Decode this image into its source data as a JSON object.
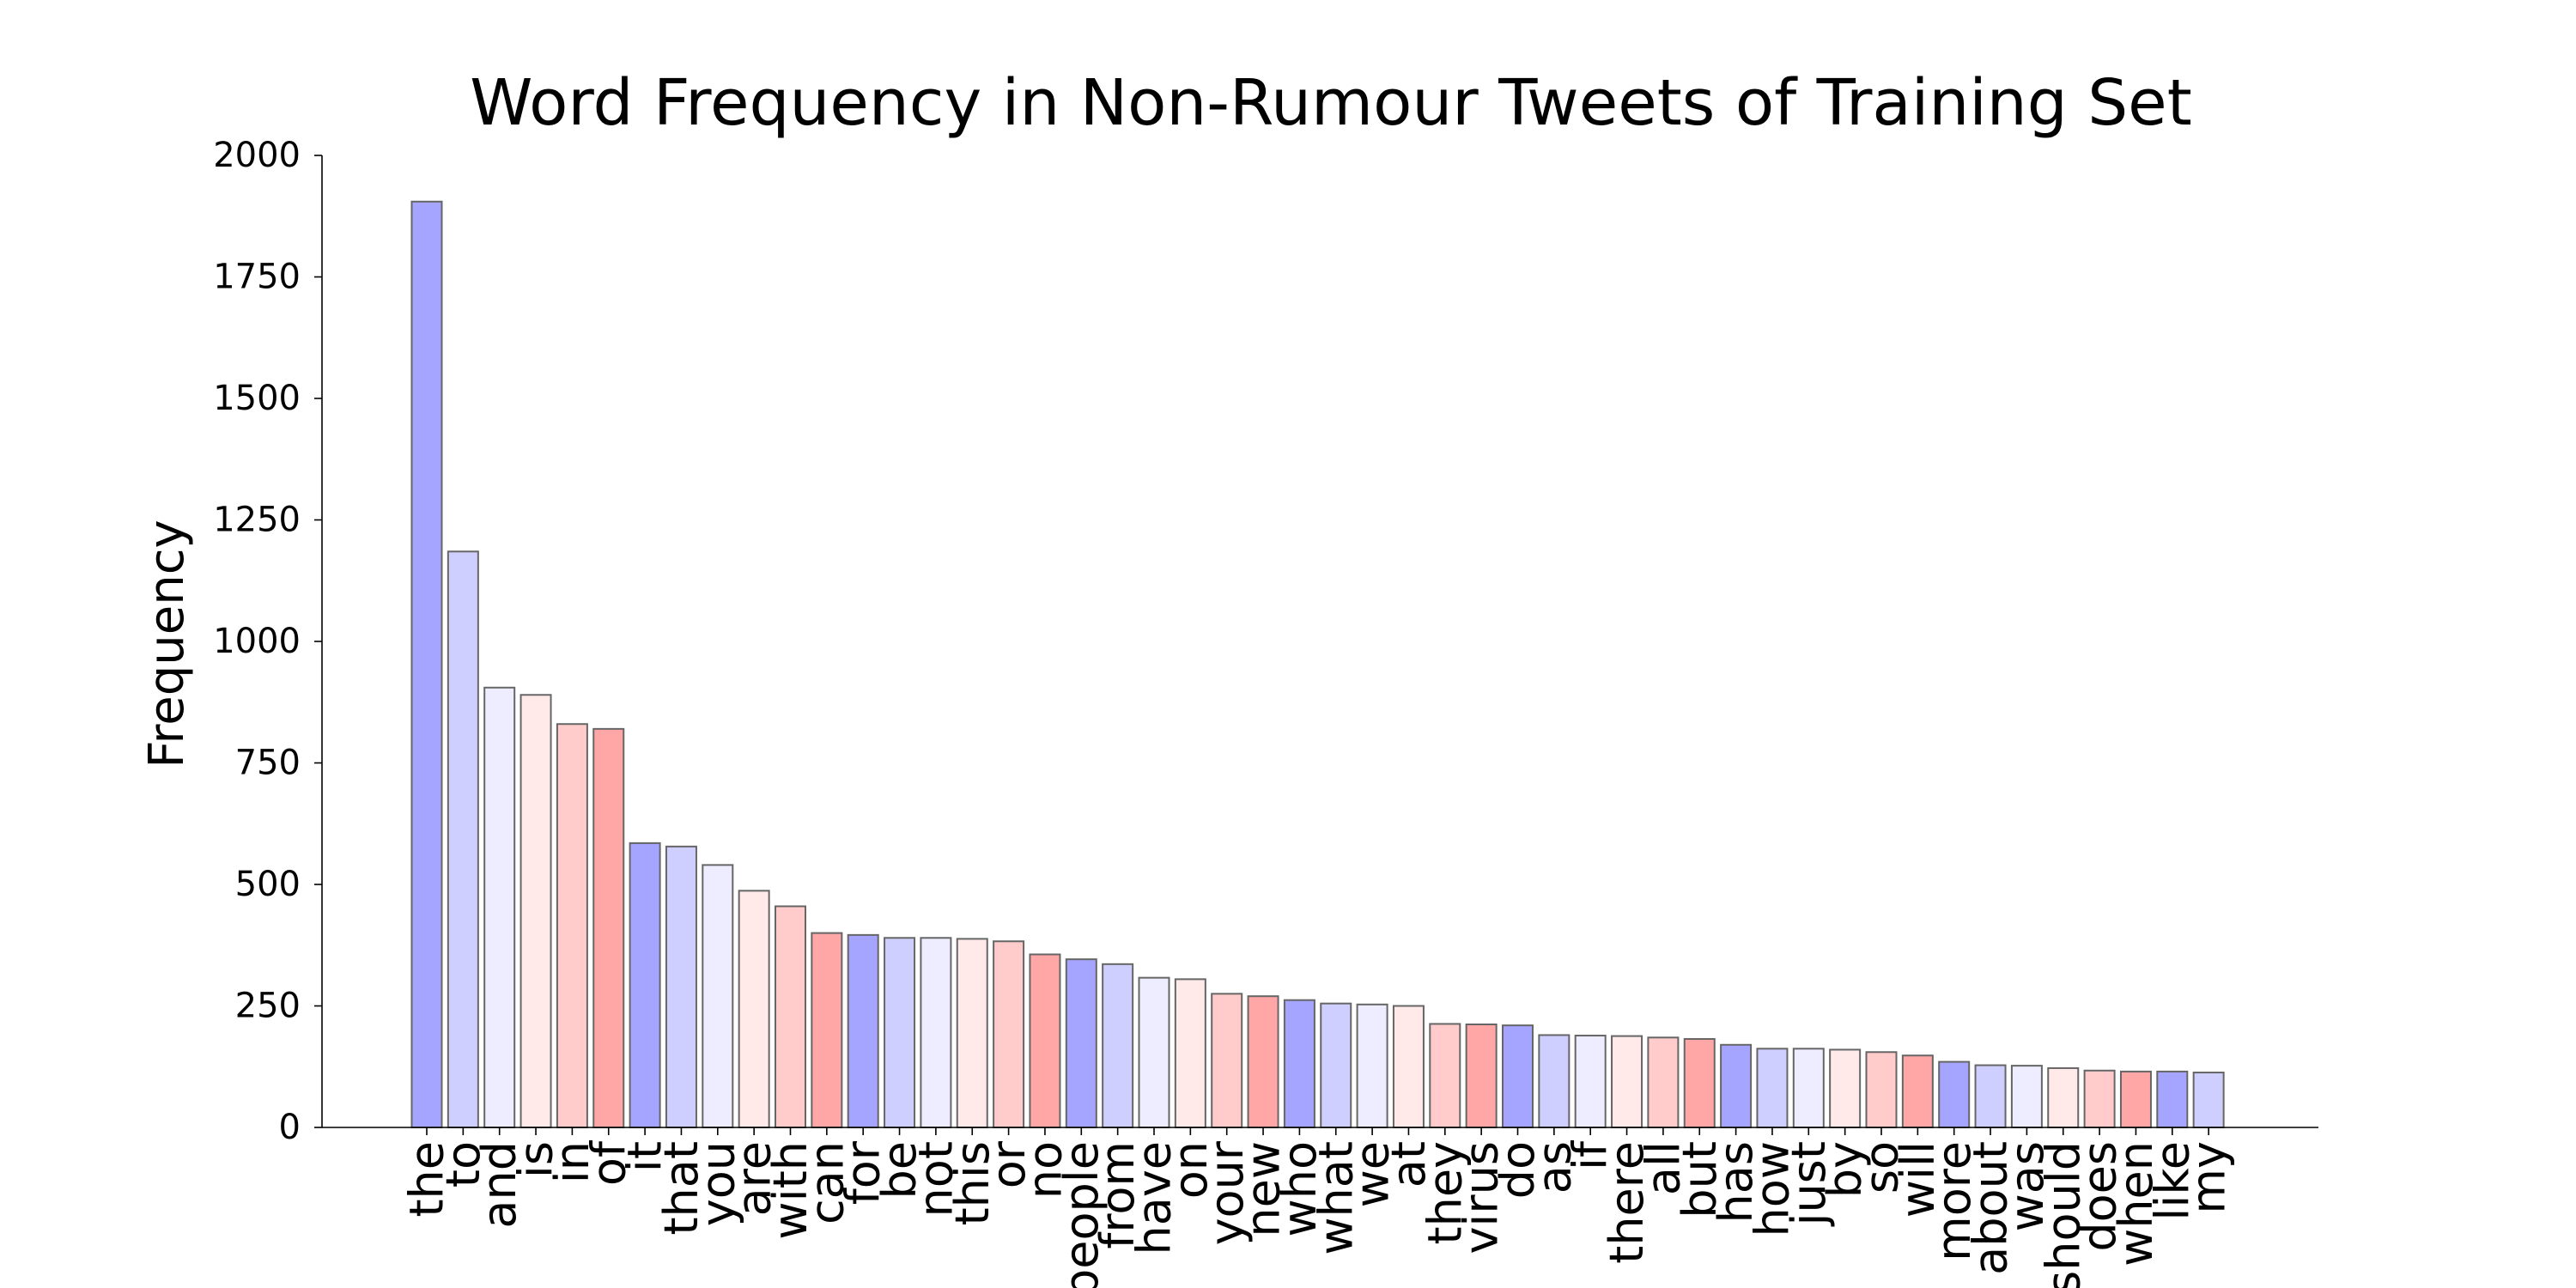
{
  "chart_data": {
    "type": "bar",
    "title": "Word Frequency in Non-Rumour Tweets of Training Set",
    "ylabel": "Frequency",
    "xlabel": "",
    "ylim": [
      0,
      2000
    ],
    "yticks": [
      0,
      250,
      500,
      750,
      1000,
      1250,
      1500,
      1750,
      2000
    ],
    "grid": false,
    "categories": [
      "the",
      "to",
      "and",
      "is",
      "in",
      "of",
      "it",
      "that",
      "you",
      "are",
      "with",
      "can",
      "for",
      "be",
      "not",
      "this",
      "or",
      "no",
      "people",
      "from",
      "have",
      "on",
      "your",
      "new",
      "who",
      "what",
      "we",
      "at",
      "they",
      "virus",
      "do",
      "as",
      "if",
      "there",
      "all",
      "but",
      "has",
      "how",
      "just",
      "by",
      "so",
      "will",
      "more",
      "about",
      "was",
      "should",
      "does",
      "when",
      "like",
      "my"
    ],
    "values": [
      1905,
      1185,
      905,
      890,
      830,
      820,
      585,
      578,
      540,
      487,
      455,
      400,
      396,
      390,
      390,
      388,
      383,
      356,
      346,
      336,
      308,
      305,
      275,
      270,
      262,
      255,
      253,
      250,
      213,
      212,
      210,
      190,
      189,
      188,
      185,
      182,
      170,
      162,
      162,
      160,
      155,
      148,
      135,
      128,
      127,
      122,
      117,
      115,
      115,
      113
    ],
    "colors": [
      "#a5a5ff",
      "#cfcfff",
      "#ededff",
      "#ffe9e9",
      "#ffcbcb",
      "#ffa7a7",
      "#a5a5ff",
      "#cfcfff",
      "#ededff",
      "#ffe9e9",
      "#ffcbcb",
      "#ffa7a7",
      "#a5a5ff",
      "#cfcfff",
      "#ededff",
      "#ffe9e9",
      "#ffcbcb",
      "#ffa7a7",
      "#a5a5ff",
      "#cfcfff",
      "#ededff",
      "#ffe9e9",
      "#ffcbcb",
      "#ffa7a7",
      "#a5a5ff",
      "#cfcfff",
      "#ededff",
      "#ffe9e9",
      "#ffcbcb",
      "#ffa7a7",
      "#a5a5ff",
      "#cfcfff",
      "#ededff",
      "#ffe9e9",
      "#ffcbcb",
      "#ffa7a7",
      "#a5a5ff",
      "#cfcfff",
      "#ededff",
      "#ffe9e9",
      "#ffcbcb",
      "#ffa7a7",
      "#a5a5ff",
      "#cfcfff",
      "#ededff",
      "#ffe9e9",
      "#ffcbcb",
      "#ffa7a7",
      "#a5a5ff",
      "#cfcfff"
    ]
  }
}
